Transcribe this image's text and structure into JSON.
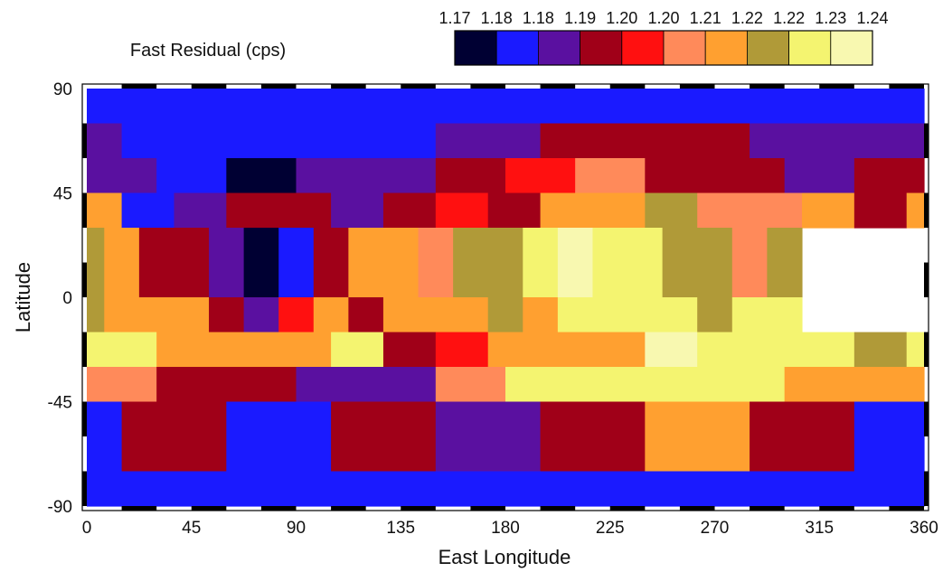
{
  "chart_data": {
    "type": "heatmap",
    "title": "Fast Residual (cps)",
    "xlabel": "East Longitude",
    "ylabel": "Latitude",
    "xlim": [
      0,
      360
    ],
    "ylim": [
      -90,
      90
    ],
    "x_ticks": [
      "0",
      "45",
      "90",
      "135",
      "180",
      "225",
      "270",
      "315",
      "360"
    ],
    "y_ticks": [
      "90",
      "45",
      "0",
      "-45",
      "-90"
    ],
    "colorbar": {
      "tick_labels": [
        "1.17",
        "1.18",
        "1.18",
        "1.19",
        "1.20",
        "1.20",
        "1.21",
        "1.22",
        "1.22",
        "1.23",
        "1.24"
      ],
      "colors": [
        "#000033",
        "#1a1aff",
        "#5a10a0",
        "#a00018",
        "#ff1010",
        "#ff8a5a",
        "#ffa030",
        "#b09a38",
        "#f4f470",
        "#f8f8b0"
      ],
      "levels": [
        1.17,
        1.24
      ]
    },
    "bands": [
      {
        "lat_range": [
          75,
          90
        ],
        "cells": [
          {
            "lon_range": [
              0,
              360
            ],
            "value": 1.1775
          }
        ]
      },
      {
        "lat_range": [
          60,
          75
        ],
        "cells": [
          {
            "lon_range": [
              0,
              15
            ],
            "value": 1.1875
          },
          {
            "lon_range": [
              15,
              60
            ],
            "value": 1.1825
          },
          {
            "lon_range": [
              60,
              105
            ],
            "value": 1.1775
          },
          {
            "lon_range": [
              105,
              150
            ],
            "value": 1.1825
          },
          {
            "lon_range": [
              150,
              195
            ],
            "value": 1.1875
          },
          {
            "lon_range": [
              195,
              240
            ],
            "value": 1.1925
          },
          {
            "lon_range": [
              240,
              285
            ],
            "value": 1.1925
          },
          {
            "lon_range": [
              285,
              330
            ],
            "value": 1.1875
          },
          {
            "lon_range": [
              330,
              360
            ],
            "value": 1.1875
          }
        ]
      },
      {
        "lat_range": [
          45,
          60
        ],
        "cells": [
          {
            "lon_range": [
              0,
              30
            ],
            "value": 1.1875
          },
          {
            "lon_range": [
              30,
              60
            ],
            "value": 1.1775
          },
          {
            "lon_range": [
              60,
              90
            ],
            "value": 1.1725
          },
          {
            "lon_range": [
              90,
              150
            ],
            "value": 1.1875
          },
          {
            "lon_range": [
              150,
              180
            ],
            "value": 1.1925
          },
          {
            "lon_range": [
              180,
              210
            ],
            "value": 1.2025
          },
          {
            "lon_range": [
              210,
              240
            ],
            "value": 1.2075
          },
          {
            "lon_range": [
              240,
              270
            ],
            "value": 1.1975
          },
          {
            "lon_range": [
              270,
              300
            ],
            "value": 1.1975
          },
          {
            "lon_range": [
              300,
              330
            ],
            "value": 1.1875
          },
          {
            "lon_range": [
              330,
              360
            ],
            "value": 1.1925
          }
        ]
      },
      {
        "lat_range": [
          30,
          45
        ],
        "cells": [
          {
            "lon_range": [
              0,
              15
            ],
            "value": 1.2125
          },
          {
            "lon_range": [
              15,
              37.5
            ],
            "value": 1.1825
          },
          {
            "lon_range": [
              37.5,
              60
            ],
            "value": 1.1875
          },
          {
            "lon_range": [
              60,
              82.5
            ],
            "value": 1.1975
          },
          {
            "lon_range": [
              82.5,
              105
            ],
            "value": 1.1925
          },
          {
            "lon_range": [
              105,
              127.5
            ],
            "value": 1.1875
          },
          {
            "lon_range": [
              127.5,
              150
            ],
            "value": 1.1975
          },
          {
            "lon_range": [
              150,
              172.5
            ],
            "value": 1.2025
          },
          {
            "lon_range": [
              172.5,
              195
            ],
            "value": 1.1975
          },
          {
            "lon_range": [
              195,
              217.5
            ],
            "value": 1.2175
          },
          {
            "lon_range": [
              217.5,
              240
            ],
            "value": 1.2175
          },
          {
            "lon_range": [
              240,
              262.5
            ],
            "value": 1.2225
          },
          {
            "lon_range": [
              262.5,
              285
            ],
            "value": 1.2075
          },
          {
            "lon_range": [
              285,
              307.5
            ],
            "value": 1.2075
          },
          {
            "lon_range": [
              307.5,
              330
            ],
            "value": 1.2125
          },
          {
            "lon_range": [
              330,
              352.5
            ],
            "value": 1.1975
          },
          {
            "lon_range": [
              352.5,
              360
            ],
            "value": 1.2125
          }
        ]
      },
      {
        "lat_range": [
          0,
          30
        ],
        "cells": [
          {
            "lon_range": [
              0,
              7.5
            ],
            "value": 1.2225
          },
          {
            "lon_range": [
              7.5,
              22.5
            ],
            "value": 1.2125
          },
          {
            "lon_range": [
              22.5,
              37.5
            ],
            "value": 1.1925
          },
          {
            "lon_range": [
              37.5,
              52.5
            ],
            "value": 1.1975
          },
          {
            "lon_range": [
              52.5,
              67.5
            ],
            "value": 1.1875
          },
          {
            "lon_range": [
              67.5,
              82.5
            ],
            "value": 1.1725
          },
          {
            "lon_range": [
              82.5,
              97.5
            ],
            "value": 1.1825
          },
          {
            "lon_range": [
              97.5,
              112.5
            ],
            "value": 1.1925
          },
          {
            "lon_range": [
              112.5,
              127.5
            ],
            "value": 1.2125
          },
          {
            "lon_range": [
              127.5,
              142.5
            ],
            "value": 1.2175
          },
          {
            "lon_range": [
              142.5,
              157.5
            ],
            "value": 1.2075
          },
          {
            "lon_range": [
              157.5,
              172.5
            ],
            "value": 1.2225
          },
          {
            "lon_range": [
              172.5,
              187.5
            ],
            "value": 1.2225
          },
          {
            "lon_range": [
              187.5,
              202.5
            ],
            "value": 1.2325
          },
          {
            "lon_range": [
              202.5,
              217.5
            ],
            "value": 1.2375
          },
          {
            "lon_range": [
              217.5,
              232.5
            ],
            "value": 1.2275
          },
          {
            "lon_range": [
              232.5,
              247.5
            ],
            "value": 1.2275
          },
          {
            "lon_range": [
              247.5,
              262.5
            ],
            "value": 1.2225
          },
          {
            "lon_range": [
              262.5,
              277.5
            ],
            "value": 1.2225
          },
          {
            "lon_range": [
              277.5,
              292.5
            ],
            "value": 1.2075
          },
          {
            "lon_range": [
              292.5,
              307.5
            ],
            "value": 1.2225
          }
        ]
      },
      {
        "lat_range": [
          -15,
          0
        ],
        "cells": [
          {
            "lon_range": [
              0,
              7.5
            ],
            "value": 1.2225
          },
          {
            "lon_range": [
              7.5,
              22.5
            ],
            "value": 1.2125
          },
          {
            "lon_range": [
              22.5,
              37.5
            ],
            "value": 1.2125
          },
          {
            "lon_range": [
              37.5,
              52.5
            ],
            "value": 1.2175
          },
          {
            "lon_range": [
              52.5,
              67.5
            ],
            "value": 1.1975
          },
          {
            "lon_range": [
              67.5,
              82.5
            ],
            "value": 1.1875
          },
          {
            "lon_range": [
              82.5,
              97.5
            ],
            "value": 1.2025
          },
          {
            "lon_range": [
              97.5,
              112.5
            ],
            "value": 1.2125
          },
          {
            "lon_range": [
              112.5,
              127.5
            ],
            "value": 1.1975
          },
          {
            "lon_range": [
              127.5,
              157.5
            ],
            "value": 1.2125
          },
          {
            "lon_range": [
              157.5,
              172.5
            ],
            "value": 1.2175
          },
          {
            "lon_range": [
              172.5,
              187.5
            ],
            "value": 1.2225
          },
          {
            "lon_range": [
              187.5,
              202.5
            ],
            "value": 1.2125
          },
          {
            "lon_range": [
              202.5,
              217.5
            ],
            "value": 1.2275
          },
          {
            "lon_range": [
              217.5,
              232.5
            ],
            "value": 1.2275
          },
          {
            "lon_range": [
              232.5,
              247.5
            ],
            "value": 1.2325
          },
          {
            "lon_range": [
              247.5,
              262.5
            ],
            "value": 1.2275
          },
          {
            "lon_range": [
              262.5,
              277.5
            ],
            "value": 1.2225
          },
          {
            "lon_range": [
              277.5,
              292.5
            ],
            "value": 1.2275
          },
          {
            "lon_range": [
              292.5,
              307.5
            ],
            "value": 1.2325
          }
        ]
      },
      {
        "lat_range": [
          -30,
          -15
        ],
        "cells": [
          {
            "lon_range": [
              0,
              15
            ],
            "value": 1.2325
          },
          {
            "lon_range": [
              15,
              30
            ],
            "value": 1.2275
          },
          {
            "lon_range": [
              30,
              60
            ],
            "value": 1.2175
          },
          {
            "lon_range": [
              60,
              105
            ],
            "value": 1.2125
          },
          {
            "lon_range": [
              105,
              127.5
            ],
            "value": 1.2275
          },
          {
            "lon_range": [
              127.5,
              150
            ],
            "value": 1.1975
          },
          {
            "lon_range": [
              150,
              172.5
            ],
            "value": 1.2025
          },
          {
            "lon_range": [
              172.5,
              210
            ],
            "value": 1.2175
          },
          {
            "lon_range": [
              210,
              240
            ],
            "value": 1.2125
          },
          {
            "lon_range": [
              240,
              262.5
            ],
            "value": 1.2375
          },
          {
            "lon_range": [
              262.5,
              285
            ],
            "value": 1.2275
          },
          {
            "lon_range": [
              285,
              307.5
            ],
            "value": 1.2325
          },
          {
            "lon_range": [
              307.5,
              330
            ],
            "value": 1.2275
          },
          {
            "lon_range": [
              330,
              352.5
            ],
            "value": 1.2225
          },
          {
            "lon_range": [
              352.5,
              360
            ],
            "value": 1.2325
          }
        ]
      },
      {
        "lat_range": [
          -45,
          -30
        ],
        "cells": [
          {
            "lon_range": [
              0,
              30
            ],
            "value": 1.2075
          },
          {
            "lon_range": [
              30,
              60
            ],
            "value": 1.1975
          },
          {
            "lon_range": [
              60,
              90
            ],
            "value": 1.1925
          },
          {
            "lon_range": [
              90,
              150
            ],
            "value": 1.1875
          },
          {
            "lon_range": [
              150,
              180
            ],
            "value": 1.2075
          },
          {
            "lon_range": [
              180,
              210
            ],
            "value": 1.2275
          },
          {
            "lon_range": [
              210,
              240
            ],
            "value": 1.2325
          },
          {
            "lon_range": [
              240,
              300
            ],
            "value": 1.2325
          },
          {
            "lon_range": [
              300,
              330
            ],
            "value": 1.2175
          },
          {
            "lon_range": [
              330,
              360
            ],
            "value": 1.2125
          }
        ]
      },
      {
        "lat_range": [
          -75,
          -45
        ],
        "cells": [
          {
            "lon_range": [
              0,
              15
            ],
            "value": 1.1825
          },
          {
            "lon_range": [
              15,
              60
            ],
            "value": 1.1925
          },
          {
            "lon_range": [
              60,
              105
            ],
            "value": 1.1825
          },
          {
            "lon_range": [
              105,
              150
            ],
            "value": 1.1925
          },
          {
            "lon_range": [
              150,
              195
            ],
            "value": 1.1875
          },
          {
            "lon_range": [
              195,
              240
            ],
            "value": 1.1975
          },
          {
            "lon_range": [
              240,
              285
            ],
            "value": 1.2125
          },
          {
            "lon_range": [
              285,
              330
            ],
            "value": 1.1975
          },
          {
            "lon_range": [
              330,
              360
            ],
            "value": 1.1825
          }
        ]
      },
      {
        "lat_range": [
          -90,
          -75
        ],
        "cells": [
          {
            "lon_range": [
              0,
              360
            ],
            "value": 1.1825
          }
        ]
      }
    ]
  }
}
